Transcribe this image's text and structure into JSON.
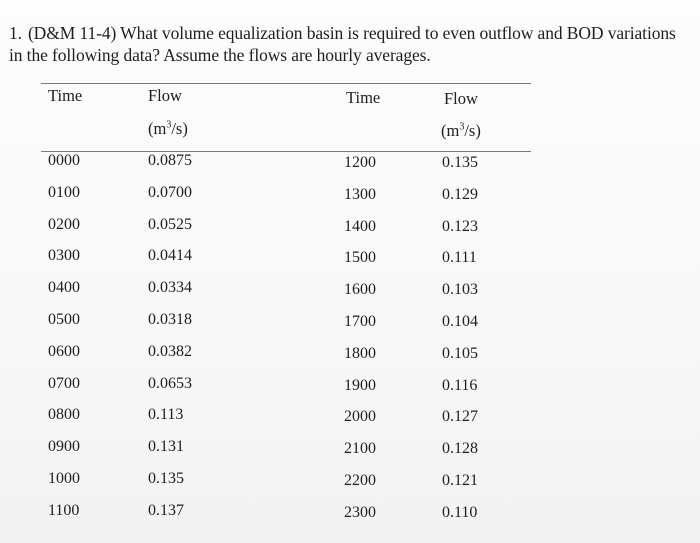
{
  "question": {
    "number": "1.",
    "text": "(D&M 11-4) What volume equalization basin is required to even outflow and BOD variations in the following data? Assume the flows are hourly averages."
  },
  "table": {
    "headers": {
      "time_1": "Time",
      "flow_1": "Flow",
      "unit_1": "(m",
      "time_2": "Time",
      "flow_2": "Flow",
      "unit_2": "(m"
    },
    "unit_exponent": "3",
    "unit_suffix": "/s)",
    "left_rows": [
      {
        "time": "0000",
        "flow": "0.0875"
      },
      {
        "time": "0100",
        "flow": "0.0700"
      },
      {
        "time": "0200",
        "flow": "0.0525"
      },
      {
        "time": "0300",
        "flow": "0.0414"
      },
      {
        "time": "0400",
        "flow": "0.0334"
      },
      {
        "time": "0500",
        "flow": "0.0318"
      },
      {
        "time": "0600",
        "flow": "0.0382"
      },
      {
        "time": "0700",
        "flow": "0.0653"
      },
      {
        "time": "0800",
        "flow": "0.113"
      },
      {
        "time": "0900",
        "flow": "0.131"
      },
      {
        "time": "1000",
        "flow": "0.135"
      },
      {
        "time": "1100",
        "flow": "0.137"
      }
    ],
    "right_rows": [
      {
        "time": "1200",
        "flow": "0.135"
      },
      {
        "time": "1300",
        "flow": "0.129"
      },
      {
        "time": "1400",
        "flow": "0.123"
      },
      {
        "time": "1500",
        "flow": "0.111"
      },
      {
        "time": "1600",
        "flow": "0.103"
      },
      {
        "time": "1700",
        "flow": "0.104"
      },
      {
        "time": "1800",
        "flow": "0.105"
      },
      {
        "time": "1900",
        "flow": "0.116"
      },
      {
        "time": "2000",
        "flow": "0.127"
      },
      {
        "time": "2100",
        "flow": "0.128"
      },
      {
        "time": "2200",
        "flow": "0.121"
      },
      {
        "time": "2300",
        "flow": "0.110"
      }
    ]
  }
}
